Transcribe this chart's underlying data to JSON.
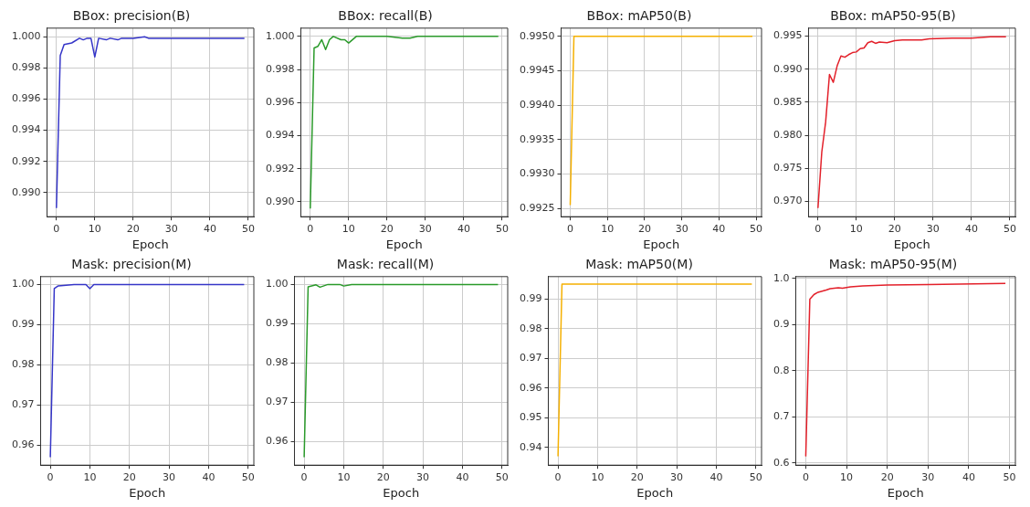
{
  "chart_data": [
    {
      "type": "line",
      "title": "BBox: precision(B)",
      "xlabel": "Epoch",
      "xlim": [
        -2.45,
        51.45
      ],
      "xticks": [
        0,
        10,
        20,
        30,
        40,
        50
      ],
      "ylim": [
        0.98845,
        1.00055
      ],
      "yticks": [
        {
          "value": 0.99,
          "label": "0.990"
        },
        0.992,
        0.994,
        0.996,
        0.998,
        {
          "value": 1,
          "label": "1.000"
        }
      ],
      "grid": true,
      "series": [
        {
          "color": "#3535c8",
          "x": [
            0,
            1,
            2,
            4,
            6,
            7,
            8,
            9,
            10,
            11,
            13,
            14,
            16,
            17,
            20,
            23,
            24,
            26,
            30,
            49
          ],
          "values": [
            0.989,
            0.9988,
            0.9995,
            0.9996,
            0.9999,
            0.9998,
            0.9999,
            0.9999,
            0.9987,
            0.9999,
            0.9998,
            0.9999,
            0.9998,
            0.9999,
            0.9999,
            1.0,
            0.9999,
            0.9999,
            0.9999,
            0.9999
          ]
        }
      ]
    },
    {
      "type": "line",
      "title": "BBox: recall(B)",
      "xlabel": "Epoch",
      "xlim": [
        -2.45,
        51.45
      ],
      "xticks": [
        0,
        10,
        20,
        30,
        40,
        50
      ],
      "ylim": [
        0.9891,
        1.0005
      ],
      "yticks": [
        {
          "value": 0.99,
          "label": "0.990"
        },
        0.992,
        0.994,
        0.996,
        0.998,
        {
          "value": 1,
          "label": "1.000"
        }
      ],
      "grid": true,
      "series": [
        {
          "color": "#2a9a2a",
          "x": [
            0,
            1,
            2,
            3,
            4,
            5,
            6,
            8,
            9,
            10,
            12,
            20,
            24,
            26,
            28,
            49
          ],
          "values": [
            0.9896,
            0.9993,
            0.9994,
            0.9998,
            0.9992,
            0.9998,
            1.0,
            0.9998,
            0.9998,
            0.9996,
            1.0,
            1.0,
            0.9999,
            0.9999,
            1.0,
            1.0
          ]
        }
      ]
    },
    {
      "type": "line",
      "title": "BBox: mAP50(B)",
      "xlabel": "Epoch",
      "xlim": [
        -2.45,
        51.45
      ],
      "xticks": [
        0,
        10,
        20,
        30,
        40,
        50
      ],
      "ylim": [
        0.99238,
        0.99512
      ],
      "yticks": [
        0.9925,
        {
          "value": 0.993,
          "label": "0.9930"
        },
        0.9935,
        {
          "value": 0.994,
          "label": "0.9940"
        },
        0.9945,
        {
          "value": 0.995,
          "label": "0.9950"
        }
      ],
      "grid": true,
      "series": [
        {
          "color": "#f5b000",
          "x": [
            0,
            1,
            49
          ],
          "values": [
            0.99255,
            0.995,
            0.995
          ]
        }
      ]
    },
    {
      "type": "line",
      "title": "BBox: mAP50-95(B)",
      "xlabel": "Epoch",
      "xlim": [
        -2.45,
        51.45
      ],
      "xticks": [
        0,
        10,
        20,
        30,
        40,
        50
      ],
      "ylim": [
        0.9677,
        0.9962
      ],
      "yticks": [
        {
          "value": 0.97,
          "label": "0.970"
        },
        0.975,
        {
          "value": 0.98,
          "label": "0.980"
        },
        0.985,
        {
          "value": 0.99,
          "label": "0.990"
        },
        0.995
      ],
      "grid": true,
      "series": [
        {
          "color": "#e3202a",
          "x": [
            0,
            1,
            2,
            3,
            4,
            5,
            6,
            7,
            8,
            9,
            10,
            11,
            12,
            13,
            14,
            15,
            16,
            18,
            20,
            22,
            27,
            29,
            35,
            40,
            45,
            49
          ],
          "values": [
            0.969,
            0.9775,
            0.982,
            0.9892,
            0.988,
            0.9905,
            0.992,
            0.9918,
            0.9922,
            0.9925,
            0.9926,
            0.9931,
            0.9932,
            0.994,
            0.9942,
            0.9939,
            0.9941,
            0.994,
            0.9943,
            0.9944,
            0.9944,
            0.9946,
            0.9947,
            0.9947,
            0.9949,
            0.9949
          ]
        }
      ]
    },
    {
      "type": "line",
      "title": "Mask: precision(M)",
      "xlabel": "Epoch",
      "xlim": [
        -2.45,
        51.45
      ],
      "xticks": [
        0,
        10,
        20,
        30,
        40,
        50
      ],
      "ylim": [
        0.955,
        1.002
      ],
      "yticks": [
        0.96,
        0.97,
        0.98,
        0.99,
        {
          "value": 1,
          "label": "1.00"
        }
      ],
      "grid": true,
      "series": [
        {
          "color": "#3535c8",
          "x": [
            0,
            1,
            2,
            6,
            9,
            10,
            11,
            49
          ],
          "values": [
            0.957,
            0.999,
            0.9997,
            1.0,
            1.0,
            0.999,
            1.0,
            1.0
          ]
        }
      ]
    },
    {
      "type": "line",
      "title": "Mask: recall(M)",
      "xlabel": "Epoch",
      "xlim": [
        -2.45,
        51.45
      ],
      "xticks": [
        0,
        10,
        20,
        30,
        40,
        50
      ],
      "ylim": [
        0.954,
        1.002
      ],
      "yticks": [
        0.96,
        0.97,
        0.98,
        0.99,
        {
          "value": 1,
          "label": "1.00"
        }
      ],
      "grid": true,
      "series": [
        {
          "color": "#2a9a2a",
          "x": [
            0,
            1,
            3,
            4,
            6,
            9,
            10,
            12,
            49
          ],
          "values": [
            0.956,
            0.9994,
            0.9999,
            0.9993,
            1.0,
            1.0,
            0.9996,
            1.0,
            1.0
          ]
        }
      ]
    },
    {
      "type": "line",
      "title": "Mask: mAP50(M)",
      "xlabel": "Epoch",
      "xlim": [
        -2.45,
        51.45
      ],
      "xticks": [
        0,
        10,
        20,
        30,
        40,
        50
      ],
      "ylim": [
        0.934,
        0.9975
      ],
      "yticks": [
        0.94,
        0.95,
        0.96,
        0.97,
        0.98,
        0.99
      ],
      "grid": true,
      "series": [
        {
          "color": "#f5b000",
          "x": [
            0,
            1,
            49
          ],
          "values": [
            0.937,
            0.995,
            0.995
          ]
        }
      ]
    },
    {
      "type": "line",
      "title": "Mask: mAP50-95(M)",
      "xlabel": "Epoch",
      "xlim": [
        -2.45,
        51.45
      ],
      "xticks": [
        0,
        10,
        20,
        30,
        40,
        50
      ],
      "ylim": [
        0.595,
        1.004
      ],
      "yticks": [
        0.6,
        0.7,
        0.8,
        0.9,
        {
          "value": 1,
          "label": "1.0"
        }
      ],
      "grid": true,
      "series": [
        {
          "color": "#e3202a",
          "x": [
            0,
            1,
            2,
            3,
            5,
            6,
            8,
            9,
            11,
            14,
            20,
            30,
            49
          ],
          "values": [
            0.614,
            0.955,
            0.965,
            0.97,
            0.975,
            0.978,
            0.98,
            0.979,
            0.982,
            0.984,
            0.986,
            0.987,
            0.989
          ]
        }
      ]
    }
  ]
}
